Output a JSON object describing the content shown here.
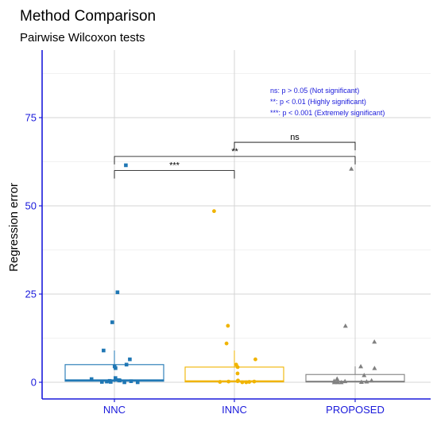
{
  "chart_data": {
    "type": "box",
    "title": "Method Comparison",
    "subtitle": "Pairwise Wilcoxon tests",
    "xlabel": "",
    "ylabel": "Regression error",
    "ylim": [
      0,
      88
    ],
    "y_ticks": [
      0,
      25,
      50,
      75
    ],
    "categories": [
      "NNC",
      "INNC",
      "PROPOSED"
    ],
    "grid": true,
    "colors": {
      "NNC": "#1f77b4",
      "INNC": "#f0b400",
      "PROPOSED": "#808080",
      "axis": "#1a1adb"
    },
    "series": [
      {
        "category": "NNC",
        "marker": "square",
        "box": {
          "q1": 0.3,
          "median": 0.6,
          "q3": 5.0,
          "whisker_low": 0,
          "whisker_high": 9
        },
        "points": [
          61.5,
          25.5,
          17.0,
          9.0,
          6.5,
          5.0,
          4.5,
          4.0,
          1.2,
          0.9,
          0.6,
          0.5,
          0.4,
          0.3,
          0.2,
          0.1,
          0.1,
          0.0,
          0.0
        ]
      },
      {
        "category": "INNC",
        "marker": "circle",
        "box": {
          "q1": 0.1,
          "median": 0.3,
          "q3": 4.3,
          "whisker_low": 0,
          "whisker_high": 9
        },
        "points": [
          48.5,
          16.0,
          11.0,
          6.5,
          5.0,
          4.3,
          2.5,
          0.5,
          0.3,
          0.2,
          0.2,
          0.1,
          0.1,
          0.0,
          0.0
        ]
      },
      {
        "category": "PROPOSED",
        "marker": "triangle",
        "box": {
          "q1": 0.1,
          "median": 0.2,
          "q3": 2.2,
          "whisker_low": 0,
          "whisker_high": 4.5
        },
        "points": [
          60.5,
          16.0,
          11.5,
          4.5,
          4.0,
          2.0,
          1.0,
          0.5,
          0.4,
          0.3,
          0.2,
          0.1,
          0.0,
          0.0,
          0.0
        ]
      }
    ],
    "comparisons": [
      {
        "from": "NNC",
        "to": "INNC",
        "label": "***",
        "y": 60
      },
      {
        "from": "NNC",
        "to": "PROPOSED",
        "label": "**",
        "y": 64
      },
      {
        "from": "INNC",
        "to": "PROPOSED",
        "label": "ns",
        "y": 68
      }
    ],
    "legend": {
      "placement": "top-right",
      "entries": [
        "ns: p > 0.05 (Not significant)",
        "**: p < 0.01 (Highly significant)",
        "***: p < 0.001  (Extremely significant)"
      ]
    }
  }
}
